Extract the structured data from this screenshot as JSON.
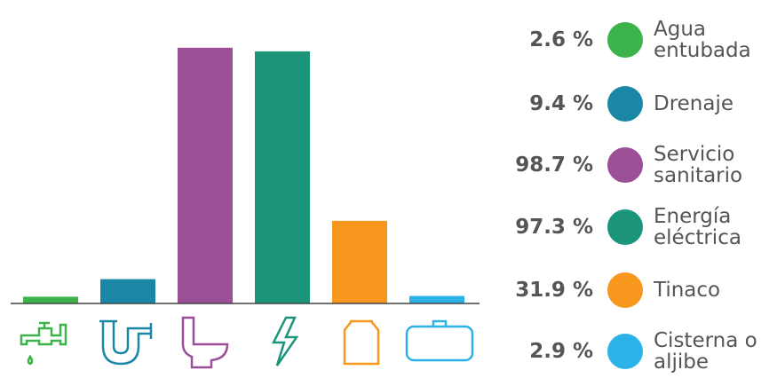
{
  "chart_data": {
    "type": "bar",
    "categories": [
      "Agua entubada",
      "Drenaje",
      "Servicio sanitario",
      "Energía eléctrica",
      "Tinaco",
      "Cisterna o aljibe"
    ],
    "values": [
      2.6,
      9.4,
      98.7,
      97.3,
      31.9,
      2.9
    ],
    "value_labels": [
      "2.6 %",
      "9.4 %",
      "98.7 %",
      "97.3 %",
      "31.9 %",
      "2.9 %"
    ],
    "colors": [
      "#3cb44b",
      "#1a87a6",
      "#9b4f96",
      "#1b9479",
      "#f7971e",
      "#2cb2e6"
    ],
    "ylim": [
      0,
      100
    ]
  }
}
